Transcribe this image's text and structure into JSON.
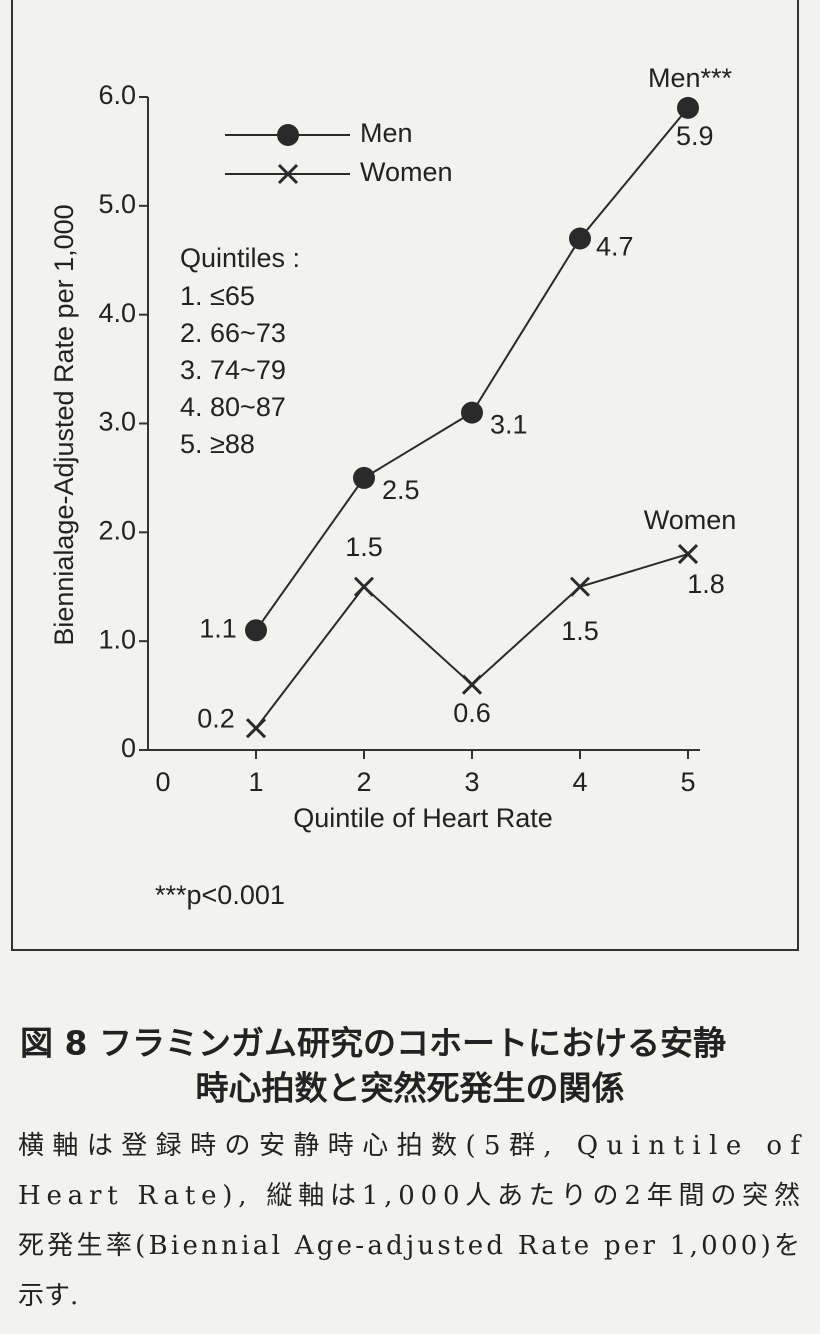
{
  "chart_data": {
    "type": "line",
    "x_label": "Quintile of Heart Rate",
    "y_label": "Biennialage-Adjusted Rate per 1,000",
    "x": [
      1,
      2,
      3,
      4,
      5
    ],
    "series": [
      {
        "name": "Men",
        "color": "#2a2a2a",
        "marker": "circle",
        "values": [
          1.1,
          2.5,
          3.1,
          4.7,
          5.9
        ]
      },
      {
        "name": "Women",
        "color": "#2a2a2a",
        "marker": "x",
        "values": [
          0.2,
          1.5,
          0.6,
          1.5,
          1.8
        ]
      }
    ],
    "xlim": [
      0,
      5
    ],
    "xticks": [
      0,
      1,
      2,
      3,
      4,
      5
    ],
    "ylim": [
      0,
      6
    ],
    "yticks": [
      0,
      {
        "value": 1,
        "label": "1.0"
      },
      {
        "value": 2,
        "label": "2.0"
      },
      {
        "value": 3,
        "label": "3.0"
      },
      {
        "value": 4,
        "label": "4.0"
      },
      {
        "value": 5,
        "label": "5.0"
      },
      {
        "value": 6,
        "label": "6.0"
      }
    ],
    "grid": false,
    "series_end_labels": [
      "Men***",
      "Women"
    ],
    "quintiles_title": "Quintiles :",
    "quintiles": [
      "1. ≤65",
      "2. 66~73",
      "3. 74~79",
      "4. 80~87",
      "5. ≥88"
    ],
    "note": "***p<0.001"
  },
  "caption": {
    "title_lines": [
      "図 8 フラミンガム研究のコホートにおける安静",
      "時心拍数と突然死発生の関係"
    ],
    "body_lines": [
      "横軸は登録時の安静時心拍数(5群, Quintile of",
      "Heart Rate), 縦軸は1,000人あたりの2年間の突然",
      "死発生率(Biennial Age-adjusted Rate per 1,000)を",
      "示す."
    ]
  }
}
